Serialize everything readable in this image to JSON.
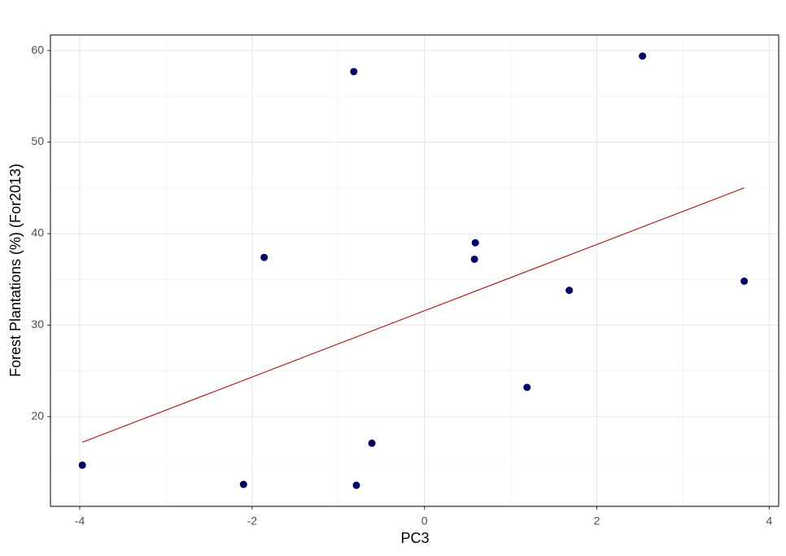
{
  "chart_data": {
    "type": "scatter",
    "x_label": "PC3",
    "y_label": "Forest Plantations (%) (For2013)",
    "x": [
      -3.97,
      -2.1,
      -1.86,
      -0.82,
      -0.79,
      -0.61,
      0.58,
      0.59,
      1.19,
      1.68,
      2.53,
      3.71
    ],
    "series": [
      {
        "color": "#000066",
        "values": [
          14.7,
          12.6,
          37.4,
          57.7,
          12.5,
          17.1,
          37.2,
          39.0,
          23.2,
          33.8,
          59.4,
          34.8
        ]
      }
    ],
    "trend": {
      "x": [
        -3.97,
        3.71
      ],
      "y": [
        17.2,
        45.0
      ],
      "color": "#b22222"
    },
    "xlim": [
      -4.34,
      4.11
    ],
    "ylim": [
      10.2,
      61.7
    ],
    "xticks": [
      -4,
      -2,
      0,
      2,
      4
    ],
    "yticks": [
      20,
      30,
      40,
      50,
      60
    ],
    "x_minor_grid": [
      -3,
      -1,
      1,
      3
    ],
    "y_minor_grid": [
      15,
      25,
      35,
      45,
      55
    ],
    "grid": true
  }
}
